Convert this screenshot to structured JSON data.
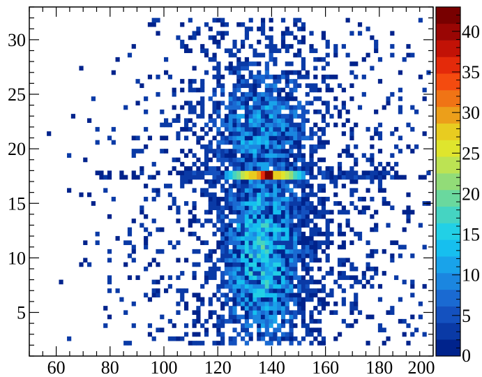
{
  "chart_data": {
    "type": "heatmap",
    "title": "",
    "xlabel": "",
    "ylabel": "",
    "xlim": [
      50,
      200
    ],
    "ylim": [
      1,
      33
    ],
    "x_bin_width": 1.5,
    "y_bin_width": 0.4,
    "x_ticks": [
      60,
      80,
      100,
      120,
      140,
      160,
      180,
      200
    ],
    "y_ticks": [
      5,
      10,
      15,
      20,
      25,
      30
    ],
    "colorbar": {
      "min": 0,
      "max": 43,
      "ticks": [
        0,
        5,
        10,
        15,
        20,
        25,
        30,
        35,
        40
      ],
      "colors": [
        "#00238c",
        "#0a3aa6",
        "#1451bf",
        "#1a6ad2",
        "#1b86e0",
        "#19a3ea",
        "#16bfef",
        "#22d0e6",
        "#45d4c2",
        "#6ad89e",
        "#92dc78",
        "#bce353",
        "#dfe52d",
        "#e8cc20",
        "#ec9f1a",
        "#f07415",
        "#f44b0f",
        "#e42a0a",
        "#c21206",
        "#9a0604",
        "#780000"
      ]
    },
    "hot_band": {
      "y": 17.5,
      "x_range": [
        122,
        152
      ],
      "values": [
        12,
        14,
        17,
        20,
        24,
        26,
        27,
        28,
        30,
        36,
        43,
        41,
        28,
        27,
        26,
        24,
        22,
        18,
        15,
        12
      ]
    },
    "core_region": {
      "x_center": 136,
      "y_center": 10.5,
      "x_sigma": 11,
      "y_sigma": 6.5,
      "peak": 14
    }
  }
}
